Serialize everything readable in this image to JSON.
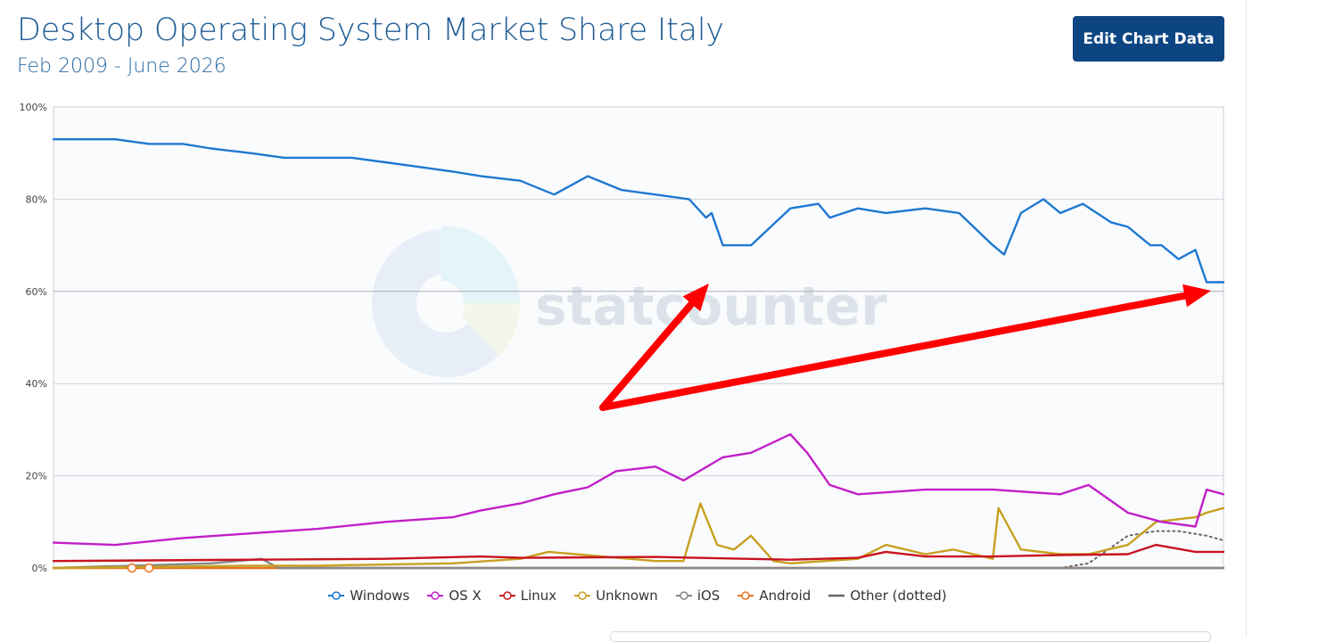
{
  "header": {
    "title": "Desktop Operating System Market Share Italy",
    "subtitle": "Feb 2009 - June 2026",
    "edit_button_label": "Edit Chart Data"
  },
  "watermark": {
    "text": "statcounter"
  },
  "chart_data": {
    "type": "line",
    "title": "Desktop Operating System Market Share Italy",
    "subtitle": "Feb 2009 - June 2026",
    "x_range": [
      "2009-02",
      "2026-06"
    ],
    "ylim": [
      0,
      100
    ],
    "y_ticks": [
      "0%",
      "20%",
      "40%",
      "60%",
      "80%",
      "100%"
    ],
    "grid": true,
    "legend_position": "bottom",
    "series": [
      {
        "name": "Windows",
        "color": "#1f78d1",
        "style": "solid",
        "x": [
          "2009-02",
          "2009-06",
          "2010-01",
          "2010-07",
          "2011-01",
          "2011-06",
          "2012-01",
          "2012-07",
          "2013-01",
          "2013-07",
          "2014-01",
          "2014-07",
          "2015-01",
          "2015-06",
          "2016-01",
          "2016-07",
          "2017-01",
          "2017-07",
          "2018-01",
          "2018-07",
          "2018-10",
          "2018-11",
          "2019-01",
          "2019-06",
          "2020-01",
          "2020-06",
          "2020-08",
          "2021-01",
          "2021-06",
          "2022-01",
          "2022-07",
          "2023-01",
          "2023-03",
          "2023-06",
          "2023-10",
          "2024-01",
          "2024-05",
          "2024-10",
          "2025-01",
          "2025-05",
          "2025-07",
          "2025-10",
          "2026-01",
          "2026-03",
          "2026-06"
        ],
        "values": [
          93,
          93,
          93,
          92,
          92,
          91,
          90,
          89,
          89,
          89,
          88,
          87,
          86,
          85,
          84,
          81,
          85,
          82,
          81,
          80,
          76,
          77,
          70,
          70,
          78,
          79,
          76,
          78,
          77,
          78,
          77,
          70,
          68,
          77,
          80,
          77,
          79,
          75,
          74,
          70,
          70,
          67,
          69,
          62,
          62
        ]
      },
      {
        "name": "OS X",
        "color": "#c21fc8",
        "style": "solid",
        "x": [
          "2009-02",
          "2010-01",
          "2011-01",
          "2012-01",
          "2013-01",
          "2014-01",
          "2015-01",
          "2015-06",
          "2016-01",
          "2016-07",
          "2017-01",
          "2017-06",
          "2018-01",
          "2018-06",
          "2019-01",
          "2019-06",
          "2020-01",
          "2020-04",
          "2020-08",
          "2021-01",
          "2022-01",
          "2023-01",
          "2024-01",
          "2024-06",
          "2025-01",
          "2025-07",
          "2026-01",
          "2026-03",
          "2026-06"
        ],
        "values": [
          5.5,
          5,
          6.5,
          7.5,
          8.5,
          10,
          11,
          12.5,
          14,
          16,
          17.5,
          21,
          22,
          19,
          24,
          25,
          29,
          25,
          18,
          16,
          17,
          17,
          16,
          18,
          12,
          10,
          9,
          17,
          16
        ]
      },
      {
        "name": "Linux",
        "color": "#c8141e",
        "style": "solid",
        "x": [
          "2009-02",
          "2012-01",
          "2014-01",
          "2015-06",
          "2016-01",
          "2018-01",
          "2020-01",
          "2021-01",
          "2021-06",
          "2022-01",
          "2023-01",
          "2024-01",
          "2025-01",
          "2025-06",
          "2026-01",
          "2026-06"
        ],
        "values": [
          1.5,
          1.8,
          2,
          2.5,
          2.2,
          2.4,
          1.8,
          2.2,
          3.5,
          2.5,
          2.5,
          2.8,
          3,
          5,
          3.5,
          3.5
        ]
      },
      {
        "name": "Unknown",
        "color": "#c8a020",
        "style": "solid",
        "x": [
          "2009-02",
          "2012-01",
          "2013-01",
          "2015-01",
          "2016-01",
          "2016-06",
          "2018-01",
          "2018-06",
          "2018-09",
          "2018-12",
          "2019-03",
          "2019-06",
          "2019-10",
          "2020-01",
          "2021-01",
          "2021-06",
          "2022-01",
          "2022-06",
          "2023-01",
          "2023-02",
          "2023-06",
          "2024-01",
          "2024-06",
          "2025-01",
          "2025-06",
          "2026-01",
          "2026-03",
          "2026-06"
        ],
        "values": [
          0,
          0.5,
          0.5,
          1,
          2,
          3.5,
          1.5,
          1.5,
          14,
          5,
          4,
          7,
          1.5,
          1,
          2,
          5,
          3,
          4,
          2,
          13,
          4,
          3,
          3,
          5,
          10,
          11,
          12,
          13
        ]
      },
      {
        "name": "iOS",
        "color": "#888888",
        "style": "solid",
        "x": [
          "2009-02",
          "2011-06",
          "2012-03",
          "2012-06",
          "2013-01",
          "2026-06"
        ],
        "values": [
          0,
          1,
          2,
          0,
          0,
          0
        ]
      },
      {
        "name": "Android",
        "color": "#e8731d",
        "style": "solid",
        "x": [
          "2009-02",
          "2026-06"
        ],
        "values": [
          0,
          0
        ]
      },
      {
        "name": "Other (dotted)",
        "color": "#666666",
        "style": "dotted",
        "x": [
          "2009-02",
          "2024-01",
          "2024-06",
          "2025-01",
          "2025-06",
          "2025-10",
          "2026-03",
          "2026-06"
        ],
        "values": [
          0,
          0,
          1,
          7,
          8,
          8,
          7,
          6
        ]
      }
    ]
  },
  "annotations": [
    {
      "type": "arrow",
      "color": "#ff0000",
      "label": ""
    },
    {
      "type": "arrow",
      "color": "#ff0000",
      "label": ""
    }
  ]
}
